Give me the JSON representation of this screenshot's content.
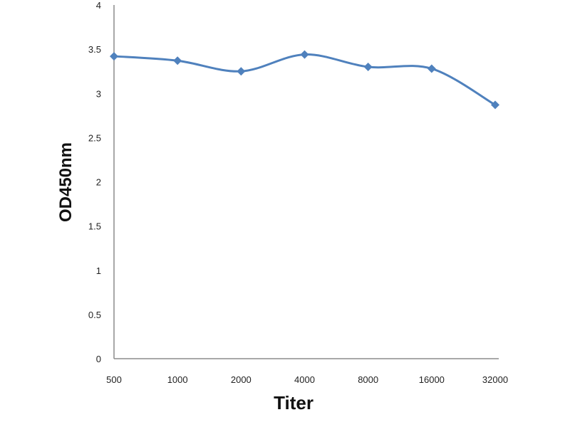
{
  "chart_data": {
    "type": "line",
    "categories": [
      "500",
      "1000",
      "2000",
      "4000",
      "8000",
      "16000",
      "32000"
    ],
    "values": [
      3.42,
      3.37,
      3.25,
      3.44,
      3.3,
      3.28,
      2.87
    ],
    "xlabel": "Titer",
    "ylabel": "OD450nm",
    "ylim": [
      0,
      4
    ],
    "yticks": [
      "0",
      "0.5",
      "1",
      "1.5",
      "2",
      "2.5",
      "3",
      "3.5",
      "4"
    ],
    "grid": false,
    "legend": "none",
    "line_color": "#4F81BD",
    "axis_color": "#8C8C8C"
  }
}
